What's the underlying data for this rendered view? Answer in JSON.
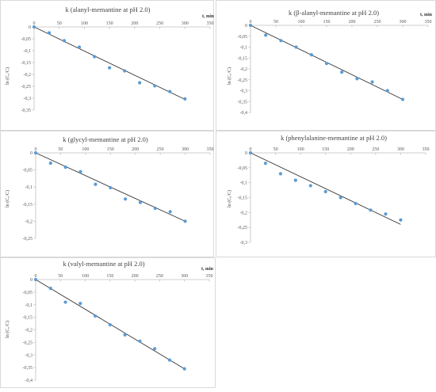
{
  "chart_data": [
    {
      "type": "scatter",
      "title": "k (alanyl-memantine at pH 2.0)",
      "xlabel": "t, min",
      "ylabel": "ln (C₀/C)",
      "xlim": [
        0,
        350
      ],
      "ylim": [
        -0.35,
        0
      ],
      "xticks": [
        "0",
        "50",
        "100",
        "150",
        "200",
        "250",
        "300",
        "350"
      ],
      "yticks": [
        "0",
        "-0,05",
        "-0,1",
        "-0,15",
        "-0,2",
        "-0,25",
        "-0,3",
        "-0,35"
      ],
      "series": [
        {
          "x": [
            0,
            30,
            60,
            90,
            120,
            150,
            180,
            210,
            240,
            270,
            300
          ],
          "y": [
            0,
            -0.025,
            -0.058,
            -0.085,
            -0.125,
            -0.172,
            -0.185,
            -0.235,
            -0.248,
            -0.272,
            -0.303
          ]
        }
      ],
      "trendline": {
        "x": [
          0,
          300
        ],
        "y": [
          0,
          -0.305
        ]
      },
      "grid": false,
      "marker_color": "#5b9bd5",
      "line_color": "#333333"
    },
    {
      "type": "scatter",
      "title": "k (β-alanyl-memantine at pH 2.0)",
      "xlabel": "t, min",
      "ylabel": "ln (C₀/C)",
      "xlim": [
        0,
        350
      ],
      "ylim": [
        -0.4,
        0
      ],
      "xticks": [
        "0",
        "50",
        "100",
        "150",
        "200",
        "250",
        "300",
        "350"
      ],
      "yticks": [
        "0",
        "-0,05",
        "-0,1",
        "-0,15",
        "-0,2",
        "-0,25",
        "-0,3",
        "-0,35",
        "-0,4"
      ],
      "series": [
        {
          "x": [
            0,
            30,
            60,
            90,
            120,
            150,
            180,
            210,
            240,
            270,
            300
          ],
          "y": [
            0,
            -0.045,
            -0.07,
            -0.1,
            -0.135,
            -0.175,
            -0.215,
            -0.245,
            -0.26,
            -0.3,
            -0.34
          ]
        }
      ],
      "trendline": {
        "x": [
          0,
          300
        ],
        "y": [
          0,
          -0.34
        ]
      },
      "grid": false,
      "marker_color": "#5b9bd5",
      "line_color": "#333333"
    },
    {
      "type": "scatter",
      "title": "k (glycyl-memantine at pH 2.0)",
      "xlabel": "",
      "ylabel": "ln (C₀/C)",
      "xlim": [
        0,
        350
      ],
      "ylim": [
        -0.25,
        0
      ],
      "xticks": [
        "0",
        "50",
        "100",
        "150",
        "200",
        "250",
        "300",
        "350"
      ],
      "yticks": [
        "0",
        "-0,05",
        "-0,1",
        "-0,15",
        "-0,2",
        "-0,25"
      ],
      "series": [
        {
          "x": [
            0,
            30,
            60,
            90,
            120,
            150,
            180,
            210,
            240,
            270,
            300
          ],
          "y": [
            0,
            -0.03,
            -0.042,
            -0.055,
            -0.092,
            -0.102,
            -0.135,
            -0.145,
            -0.162,
            -0.172,
            -0.2
          ]
        }
      ],
      "trendline": {
        "x": [
          0,
          300
        ],
        "y": [
          0,
          -0.2
        ]
      },
      "grid": false,
      "marker_color": "#5b9bd5",
      "line_color": "#333333"
    },
    {
      "type": "scatter",
      "title": "k (phenylalanine-memantine at pH 2.0)",
      "xlabel": "",
      "ylabel": "ln (C₀/C)",
      "xlim": [
        0,
        350
      ],
      "ylim": [
        -0.3,
        0
      ],
      "xticks": [
        "0",
        "50",
        "100",
        "150",
        "200",
        "250",
        "300",
        "350"
      ],
      "yticks": [
        "0",
        "-0,05",
        "-0,1",
        "-0,15",
        "-0,2",
        "-0,25",
        "-0,3"
      ],
      "series": [
        {
          "x": [
            0,
            30,
            60,
            90,
            120,
            150,
            180,
            210,
            240,
            270,
            300
          ],
          "y": [
            0,
            -0.035,
            -0.07,
            -0.092,
            -0.11,
            -0.13,
            -0.15,
            -0.17,
            -0.192,
            -0.205,
            -0.225
          ]
        }
      ],
      "trendline": {
        "x": [
          0,
          300
        ],
        "y": [
          0,
          -0.24
        ]
      },
      "grid": false,
      "marker_color": "#5b9bd5",
      "line_color": "#333333"
    },
    {
      "type": "scatter",
      "title": "k (valyl-memantine at pH 2.0)",
      "xlabel": "t, min",
      "ylabel": "ln (C₀/C)",
      "xlim": [
        0,
        350
      ],
      "ylim": [
        -0.4,
        0
      ],
      "xticks": [
        "0",
        "50",
        "100",
        "150",
        "200",
        "250",
        "300",
        "350"
      ],
      "yticks": [
        "0",
        "-0,05",
        "-0,1",
        "-0,15",
        "-0,2",
        "-0,25",
        "-0,3",
        "-0,35",
        "-0,4"
      ],
      "series": [
        {
          "x": [
            0,
            30,
            60,
            90,
            120,
            150,
            180,
            210,
            240,
            270,
            300
          ],
          "y": [
            0,
            -0.035,
            -0.09,
            -0.095,
            -0.145,
            -0.18,
            -0.22,
            -0.245,
            -0.275,
            -0.32,
            -0.355
          ]
        }
      ],
      "trendline": {
        "x": [
          0,
          300
        ],
        "y": [
          0,
          -0.355
        ]
      },
      "grid": false,
      "marker_color": "#5b9bd5",
      "line_color": "#333333"
    }
  ]
}
